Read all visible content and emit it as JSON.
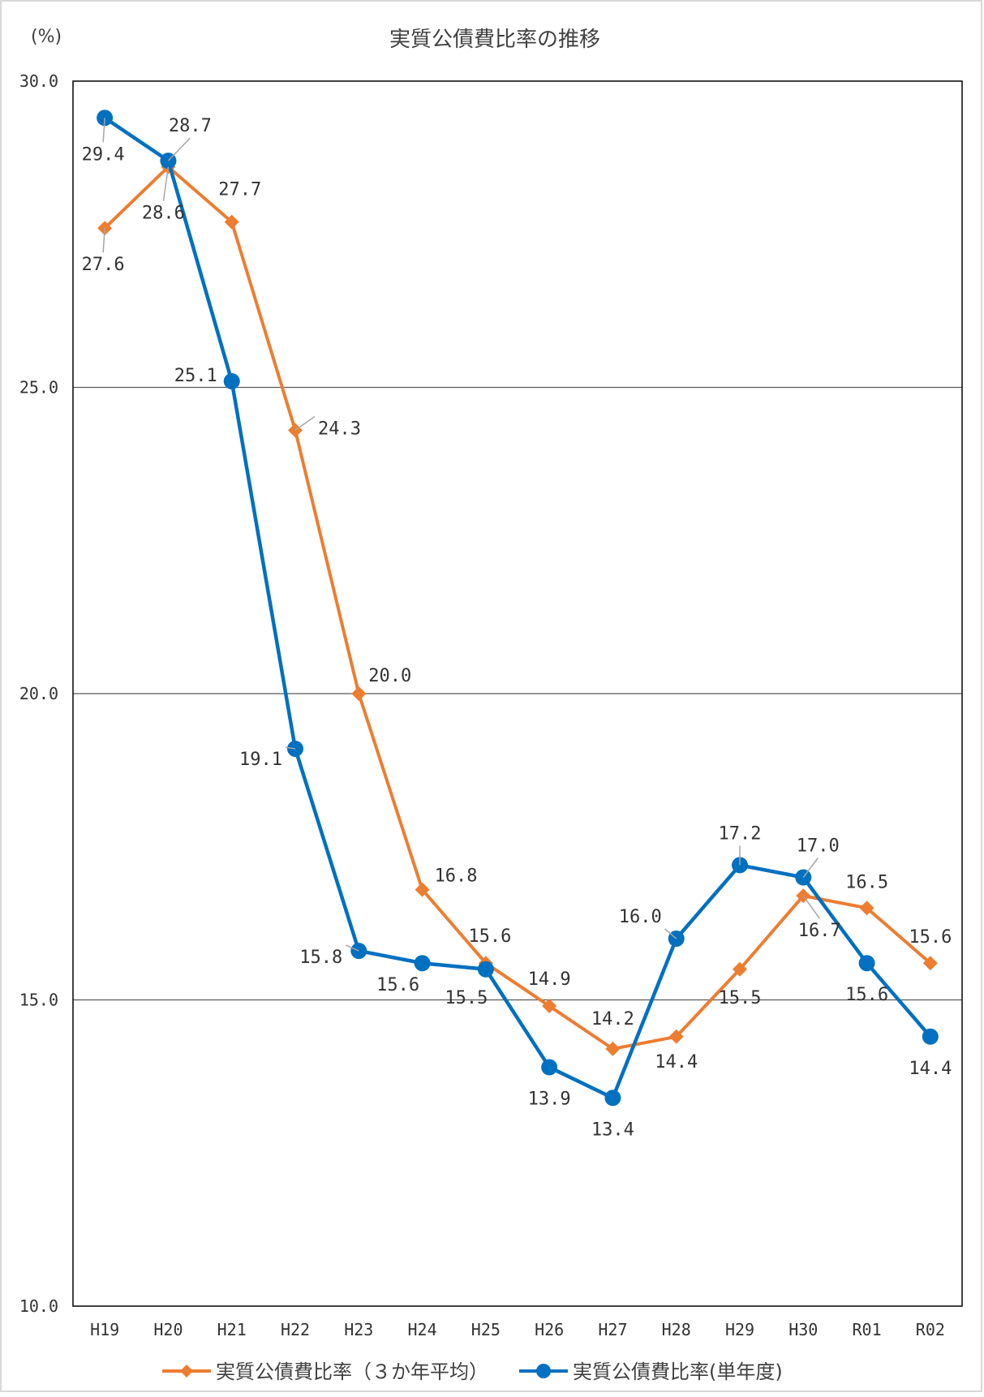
{
  "chart_data": {
    "type": "line",
    "title": "実質公債費比率の推移",
    "unit_label": "(%)",
    "categories": [
      "H19",
      "H20",
      "H21",
      "H22",
      "H23",
      "H24",
      "H25",
      "H26",
      "H27",
      "H28",
      "H29",
      "H30",
      "R01",
      "R02"
    ],
    "ylim": [
      10,
      30
    ],
    "yticks": [
      "10.0",
      "15.0",
      "20.0",
      "25.0",
      "30.0"
    ],
    "grid": true,
    "legend_position": "bottom",
    "series": [
      {
        "name": "実質公債費比率（３か年平均）",
        "color": "#ED7D31",
        "marker": "diamond",
        "values": [
          27.6,
          28.6,
          27.7,
          24.3,
          20.0,
          16.8,
          15.6,
          14.9,
          14.2,
          14.4,
          15.5,
          16.7,
          16.5,
          15.6
        ],
        "labels": [
          "27.6",
          "28.6",
          "27.7",
          "24.3",
          "20.0",
          "16.8",
          "15.6",
          "14.9",
          "14.2",
          "14.4",
          "15.5",
          "16.7",
          "16.5",
          "15.6"
        ]
      },
      {
        "name": "実質公債費比率(単年度)",
        "color": "#0070C0",
        "marker": "circle",
        "values": [
          29.4,
          28.7,
          25.1,
          19.1,
          15.8,
          15.6,
          15.5,
          13.9,
          13.4,
          16.0,
          17.2,
          17.0,
          15.6,
          14.4
        ],
        "labels": [
          "29.4",
          "28.7",
          "25.1",
          "19.1",
          "15.8",
          "15.6",
          "15.5",
          "13.9",
          "13.4",
          "16.0",
          "17.2",
          "17.0",
          "15.6",
          "14.4"
        ]
      }
    ]
  }
}
